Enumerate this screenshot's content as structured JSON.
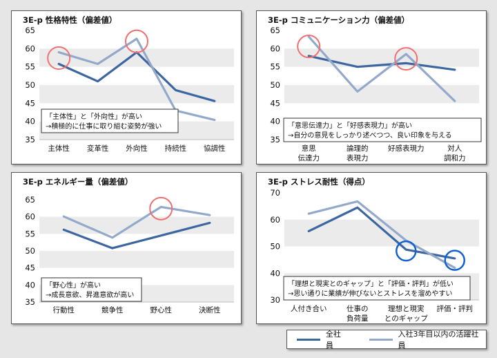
{
  "colors": {
    "series_all": "#3b66a0",
    "series_new": "#92a9cc",
    "band": "#ebebeb",
    "circle_red": "#f07070",
    "circle_blue": "#1560d0"
  },
  "legend": {
    "all_label": "全社員",
    "new_label": "入社3年目以内の活躍社員"
  },
  "chart_data": [
    {
      "type": "line",
      "title": "3E-p 性格特性（偏差値）",
      "categories": [
        "主体性",
        "変革性",
        "外向性",
        "持続性",
        "協調性"
      ],
      "yticks": [
        "65",
        "60",
        "55",
        "50",
        "45",
        "40",
        "35"
      ],
      "ylim": [
        35,
        65
      ],
      "series": [
        {
          "name": "全社員",
          "values": [
            55.8,
            51,
            59,
            48.6,
            45.6
          ]
        },
        {
          "name": "入社3年目以内の活躍社員",
          "values": [
            59,
            55.8,
            62.7,
            43,
            40.4
          ]
        }
      ],
      "highlights": [
        {
          "index": 0,
          "value": 57.4,
          "color": "red"
        },
        {
          "index": 2,
          "value": 62,
          "color": "red"
        }
      ],
      "note": [
        "「主体性」と「外向性」が高い",
        "→積極的に仕事に取り組む姿勢が強い"
      ]
    },
    {
      "type": "line",
      "title": "3E-p コミュニケーション力（偏差値）",
      "categories": [
        "意思\n伝達力",
        "論理的\n表現力",
        "好感表現力",
        "対人\n調和力"
      ],
      "yticks": [
        "65",
        "60",
        "55",
        "50",
        "45",
        "40",
        "35"
      ],
      "ylim": [
        35,
        65
      ],
      "series": [
        {
          "name": "全社員",
          "values": [
            58,
            55,
            56,
            54.2
          ]
        },
        {
          "name": "入社3年目以内の活躍社員",
          "values": [
            63.3,
            48.2,
            58.5,
            45.6
          ]
        }
      ],
      "highlights": [
        {
          "index": 0,
          "value": 60.6,
          "color": "red"
        },
        {
          "index": 2,
          "value": 57.2,
          "color": "red"
        }
      ],
      "note": [
        "「意思伝達力」と「好感表現力」が高い",
        "→自分の意見をしっかり述べつつ、良い印象を与える"
      ]
    },
    {
      "type": "line",
      "title": "3E-p エネルギー量（偏差値）",
      "categories": [
        "行動性",
        "競争性",
        "野心性",
        "決断性"
      ],
      "yticks": [
        "65",
        "60",
        "55",
        "50",
        "45",
        "40",
        "35"
      ],
      "ylim": [
        35,
        65
      ],
      "series": [
        {
          "name": "全社員",
          "values": [
            56.2,
            50.8,
            54.5,
            58.2
          ]
        },
        {
          "name": "入社3年目以内の活躍社員",
          "values": [
            60.1,
            53.9,
            62.9,
            60.5
          ]
        }
      ],
      "highlights": [
        {
          "index": 2,
          "value": 62.4,
          "color": "red"
        }
      ],
      "note": [
        "「野心性」が高い",
        "→成長意欲、昇進意欲が高い"
      ]
    },
    {
      "type": "line",
      "title": "3E-p ストレス耐性（得点）",
      "categories": [
        "人付き合い",
        "仕事の\n負荷量",
        "理想と現実\nとのギャップ",
        "評価・評判"
      ],
      "yticks": [
        "70",
        "60",
        "50",
        "40",
        "30"
      ],
      "ylim": [
        30,
        70
      ],
      "series": [
        {
          "name": "全社員",
          "values": [
            55.7,
            64.5,
            48.8,
            45.5
          ]
        },
        {
          "name": "入社3年目以内の活躍社員",
          "values": [
            62.2,
            66.8,
            52.2,
            42
          ]
        }
      ],
      "highlights": [
        {
          "index": 2,
          "value": 48.3,
          "color": "blue"
        },
        {
          "index": 3,
          "value": 44.8,
          "color": "blue"
        }
      ],
      "note": [
        "「理想と現実とのギャップ」と「評価・評判」が低い",
        "→思い通りに業績が伸びないとストレスを溜めやすい"
      ]
    }
  ]
}
